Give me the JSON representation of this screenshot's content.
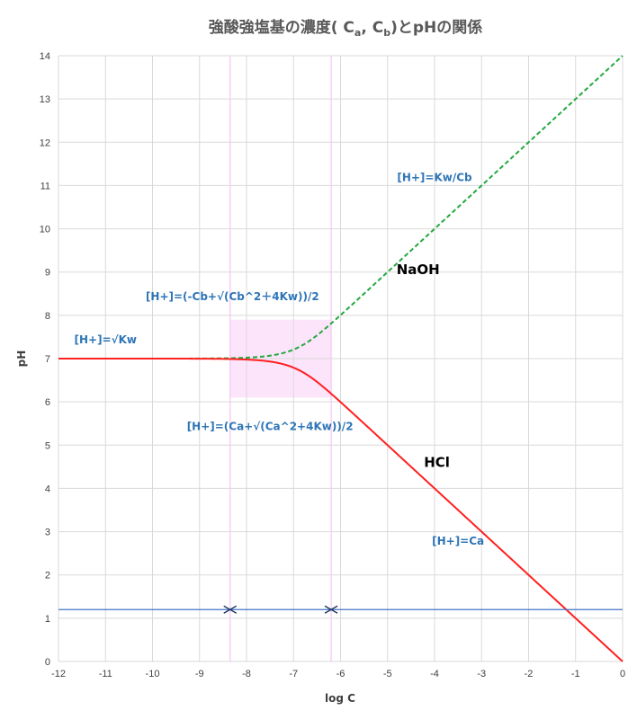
{
  "chart_data": {
    "type": "line",
    "title": "強酸強塩基の濃度( C",
    "title_sub_a": "a",
    "title_mid": ",  C",
    "title_sub_b": "b",
    "title_end": ")とpHの関係",
    "xlabel": "log C",
    "ylabel": "pH",
    "xlim": [
      -12,
      0
    ],
    "ylim": [
      0,
      14
    ],
    "x_ticks": [
      -12,
      -11,
      -10,
      -9,
      -8,
      -7,
      -6,
      -5,
      -4,
      -3,
      -2,
      -1,
      0
    ],
    "y_ticks": [
      0,
      1,
      2,
      3,
      4,
      5,
      6,
      7,
      8,
      9,
      10,
      11,
      12,
      13,
      14
    ],
    "grid": true,
    "series": [
      {
        "name": "NaOH",
        "style": "dashed",
        "color": "#22a93f",
        "kw": 1e-14,
        "kind": "base",
        "x_range": [
          -12,
          0
        ]
      },
      {
        "name": "HCl",
        "style": "solid",
        "color": "#ff2020",
        "kw": 1e-14,
        "kind": "acid",
        "x_range": [
          -12,
          0
        ]
      }
    ],
    "highlight_region": {
      "x": [
        -8.35,
        -6.2
      ],
      "y": [
        6.1,
        7.9
      ],
      "color": "#fce4fa"
    },
    "guide_lines": [
      {
        "x": -8.35,
        "color": "#f6c6f2"
      },
      {
        "x": -6.2,
        "color": "#f6c6f2"
      }
    ],
    "baseline": {
      "y": 1.2,
      "color": "#4472c4"
    },
    "markers": [
      {
        "x": -8.35,
        "y": 1.2,
        "symbol": "><"
      },
      {
        "x": -6.2,
        "y": 1.2,
        "symbol": "><"
      }
    ],
    "annotations": [
      {
        "text": "[H+]=√Kw",
        "x": -11.0,
        "y": 7.35
      },
      {
        "text": "[H+]=(-Cb+√(Cb^2＋4Kw))/2",
        "x": -8.3,
        "y": 8.35
      },
      {
        "text": "[H+]=(Ca+√(Ca^2+4Kw))/2",
        "x": -7.5,
        "y": 5.35
      },
      {
        "text": "[H+]=Kw/Cb",
        "x": -4.0,
        "y": 11.1
      },
      {
        "text": "[H+]=Ca",
        "x": -3.5,
        "y": 2.7
      }
    ],
    "series_labels": [
      {
        "text": "NaOH",
        "x": -4.35,
        "y": 8.95
      },
      {
        "text": "HCl",
        "x": -3.95,
        "y": 4.5
      }
    ]
  }
}
